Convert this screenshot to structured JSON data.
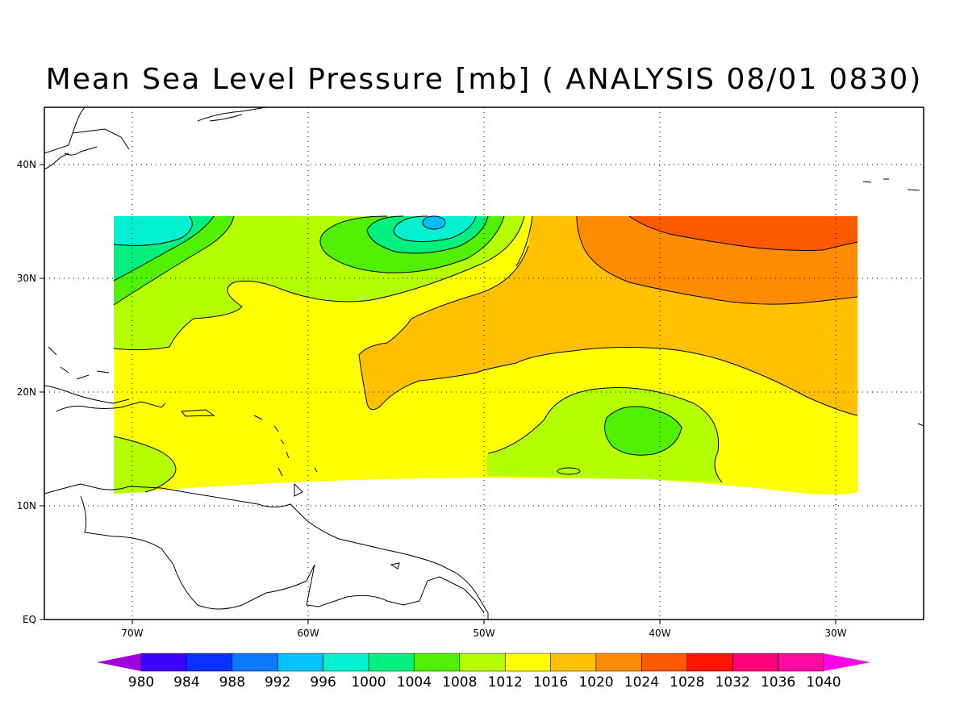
{
  "title": "Mean Sea Level Pressure [mb] ( ANALYSIS 08/01 0830)",
  "map": {
    "lon_range": [
      -75,
      -25
    ],
    "lat_range": [
      0,
      45
    ],
    "x_ticks": [
      {
        "lon": -70,
        "label": "70W"
      },
      {
        "lon": -60,
        "label": "60W"
      },
      {
        "lon": -50,
        "label": "50W"
      },
      {
        "lon": -40,
        "label": "40W"
      },
      {
        "lon": -30,
        "label": "30W"
      }
    ],
    "y_ticks": [
      {
        "lat": 0,
        "label": "EQ"
      },
      {
        "lat": 10,
        "label": "10N"
      },
      {
        "lat": 20,
        "label": "20N"
      },
      {
        "lat": 30,
        "label": "30N"
      },
      {
        "lat": 40,
        "label": "40N"
      }
    ],
    "grid": "dotted"
  },
  "colorbar": {
    "levels": [
      "980",
      "984",
      "988",
      "992",
      "996",
      "1000",
      "1004",
      "1008",
      "1012",
      "1016",
      "1020",
      "1024",
      "1028",
      "1032",
      "1036",
      "1040"
    ],
    "colors": [
      "#a000e0",
      "#3c00ff",
      "#0a32ff",
      "#0a78ff",
      "#00c0ff",
      "#00f0d0",
      "#00f080",
      "#50f000",
      "#b4ff00",
      "#ffff00",
      "#ffc000",
      "#ff8c00",
      "#ff5a00",
      "#ff1400",
      "#ff0078",
      "#ff0aa0",
      "#ff00e6"
    ]
  },
  "features": {
    "low_center": "near 35N 53W",
    "high_center": "near 33N 33W",
    "colors": {
      "low": "#00c0ff",
      "high": "#ff5a00"
    }
  }
}
